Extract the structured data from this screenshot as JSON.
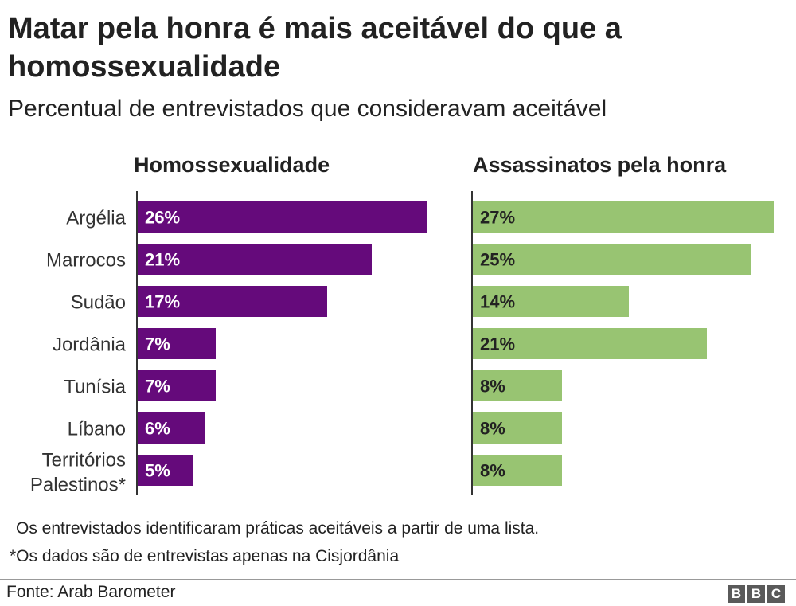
{
  "title": "Matar pela honra é mais aceitável do que a homossexualidade",
  "subtitle": "Percentual de entrevistados que consideravam aceitável",
  "chart_data": {
    "type": "bar",
    "orientation": "horizontal",
    "categories": [
      [
        "Argélia"
      ],
      [
        "Marrocos"
      ],
      [
        "Sudão"
      ],
      [
        "Jordânia"
      ],
      [
        "Tunísia"
      ],
      [
        "Líbano"
      ],
      [
        "Territórios",
        "Palestinos*"
      ]
    ],
    "series": [
      {
        "name": "Homossexualidade",
        "values": [
          26,
          21,
          17,
          7,
          7,
          6,
          5
        ],
        "labels": [
          "26%",
          "21%",
          "17%",
          "7%",
          "7%",
          "6%",
          "5%"
        ],
        "color": "#650a7b",
        "label_color": "#ffffff"
      },
      {
        "name": "Assassinatos pela honra",
        "values": [
          27,
          25,
          14,
          21,
          8,
          8,
          8
        ],
        "labels": [
          "27%",
          "25%",
          "14%",
          "21%",
          "8%",
          "8%",
          "8%"
        ],
        "color": "#98c472",
        "label_color": "#222222"
      }
    ],
    "unit": "%",
    "grid": false,
    "legend": "panel titles above each panel"
  },
  "notes": [
    "Os entrevistados identificaram práticas aceitáveis a partir de uma lista.",
    "*Os dados são de entrevistas apenas na Cisjordânia"
  ],
  "source": "Fonte: Arab Barometer",
  "logo": [
    "B",
    "B",
    "C"
  ]
}
